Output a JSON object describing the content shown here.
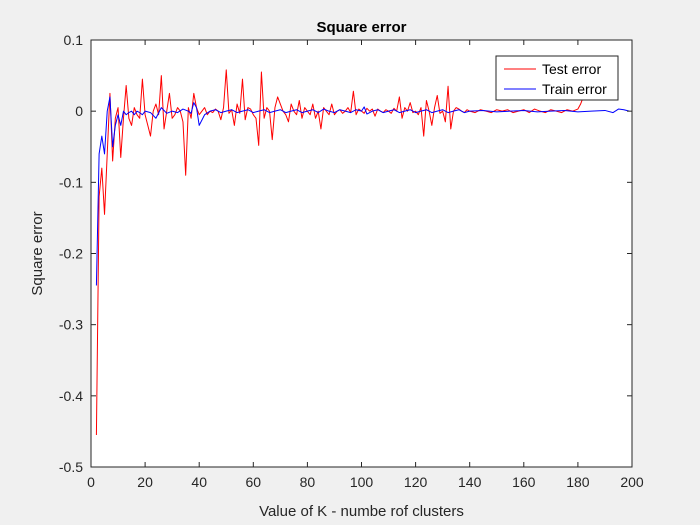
{
  "chart_data": {
    "type": "line",
    "title": "Square error",
    "xlabel": "Value of K - numbe rof clusters",
    "ylabel": "Square error",
    "xlim": [
      0,
      200
    ],
    "ylim": [
      -0.5,
      0.1
    ],
    "xticks": [
      0,
      20,
      40,
      60,
      80,
      100,
      120,
      140,
      160,
      180,
      200
    ],
    "yticks": [
      -0.5,
      -0.4,
      -0.3,
      -0.2,
      -0.1,
      0,
      0.1
    ],
    "ytick_labels": [
      "-0.5",
      "-0.4",
      "-0.3",
      "-0.2",
      "-0.1",
      "0",
      "0.1"
    ],
    "grid": false,
    "legend_position": "top-right",
    "series": [
      {
        "name": "Test error",
        "color": "#ff0000",
        "points": [
          [
            2,
            -0.455
          ],
          [
            3,
            -0.12
          ],
          [
            4,
            -0.08
          ],
          [
            5,
            -0.145
          ],
          [
            6,
            -0.06
          ],
          [
            7,
            0.025
          ],
          [
            8,
            -0.07
          ],
          [
            9,
            -0.01
          ],
          [
            10,
            0.005
          ],
          [
            11,
            -0.065
          ],
          [
            12,
            -0.01
          ],
          [
            13,
            0.036
          ],
          [
            14,
            -0.01
          ],
          [
            15,
            -0.02
          ],
          [
            16,
            0.005
          ],
          [
            17,
            -0.005
          ],
          [
            18,
            -0.01
          ],
          [
            19,
            0.045
          ],
          [
            20,
            -0.005
          ],
          [
            21,
            -0.02
          ],
          [
            22,
            -0.035
          ],
          [
            23,
            0.0
          ],
          [
            24,
            0.01
          ],
          [
            25,
            -0.005
          ],
          [
            26,
            0.05
          ],
          [
            27,
            -0.025
          ],
          [
            28,
            0.0
          ],
          [
            29,
            0.025
          ],
          [
            30,
            -0.01
          ],
          [
            31,
            -0.005
          ],
          [
            32,
            0.005
          ],
          [
            33,
            0.0
          ],
          [
            34,
            -0.015
          ],
          [
            35,
            -0.09
          ],
          [
            36,
            0.005
          ],
          [
            37,
            -0.01
          ],
          [
            38,
            0.025
          ],
          [
            39,
            0.005
          ],
          [
            40,
            -0.005
          ],
          [
            41,
            0.0
          ],
          [
            42,
            0.005
          ],
          [
            43,
            -0.005
          ],
          [
            44,
            0.0
          ],
          [
            45,
            -0.002
          ],
          [
            46,
            0.003
          ],
          [
            47,
            0.0
          ],
          [
            48,
            -0.012
          ],
          [
            49,
            0.005
          ],
          [
            50,
            0.058
          ],
          [
            51,
            -0.003
          ],
          [
            52,
            0.002
          ],
          [
            53,
            -0.02
          ],
          [
            54,
            0.01
          ],
          [
            55,
            -0.003
          ],
          [
            56,
            0.045
          ],
          [
            57,
            -0.012
          ],
          [
            58,
            0.005
          ],
          [
            59,
            0.003
          ],
          [
            60,
            -0.005
          ],
          [
            61,
            -0.01
          ],
          [
            62,
            -0.048
          ],
          [
            63,
            0.055
          ],
          [
            64,
            -0.01
          ],
          [
            65,
            0.005
          ],
          [
            66,
            0.0
          ],
          [
            67,
            -0.04
          ],
          [
            68,
            0.005
          ],
          [
            69,
            0.02
          ],
          [
            70,
            0.01
          ],
          [
            71,
            0.0
          ],
          [
            72,
            -0.005
          ],
          [
            73,
            -0.015
          ],
          [
            74,
            0.01
          ],
          [
            75,
            0.0
          ],
          [
            76,
            -0.005
          ],
          [
            77,
            0.015
          ],
          [
            78,
            -0.01
          ],
          [
            79,
            0.005
          ],
          [
            80,
            0.0
          ],
          [
            81,
            -0.005
          ],
          [
            82,
            0.01
          ],
          [
            83,
            -0.01
          ],
          [
            84,
            0.0
          ],
          [
            85,
            -0.025
          ],
          [
            86,
            0.005
          ],
          [
            87,
            0.0
          ],
          [
            88,
            -0.005
          ],
          [
            89,
            0.01
          ],
          [
            90,
            -0.005
          ],
          [
            91,
            0.0
          ],
          [
            92,
            0.002
          ],
          [
            93,
            -0.003
          ],
          [
            94,
            0.0
          ],
          [
            95,
            0.005
          ],
          [
            96,
            -0.002
          ],
          [
            97,
            0.028
          ],
          [
            98,
            -0.005
          ],
          [
            99,
            0.003
          ],
          [
            100,
            0.0
          ],
          [
            101,
            -0.003
          ],
          [
            102,
            0.004
          ],
          [
            103,
            0.0
          ],
          [
            104,
            0.003
          ],
          [
            105,
            -0.007
          ],
          [
            106,
            0.003
          ],
          [
            107,
            0.0
          ],
          [
            108,
            -0.002
          ],
          [
            109,
            0.002
          ],
          [
            110,
            0.0
          ],
          [
            111,
            -0.003
          ],
          [
            112,
            0.004
          ],
          [
            113,
            0.0
          ],
          [
            114,
            0.02
          ],
          [
            115,
            -0.01
          ],
          [
            116,
            0.005
          ],
          [
            117,
            0.0
          ],
          [
            118,
            0.012
          ],
          [
            119,
            -0.002
          ],
          [
            120,
            0.0
          ],
          [
            121,
            -0.005
          ],
          [
            122,
            0.005
          ],
          [
            123,
            -0.035
          ],
          [
            124,
            0.015
          ],
          [
            125,
            0.0
          ],
          [
            126,
            -0.02
          ],
          [
            127,
            0.005
          ],
          [
            128,
            0.022
          ],
          [
            129,
            -0.003
          ],
          [
            130,
            0.0
          ],
          [
            131,
            -0.015
          ],
          [
            132,
            0.035
          ],
          [
            133,
            -0.025
          ],
          [
            134,
            0.0
          ],
          [
            135,
            0.005
          ],
          [
            136,
            0.003
          ],
          [
            137,
            0.0
          ],
          [
            138,
            -0.002
          ],
          [
            139,
            0.002
          ],
          [
            140,
            0.0
          ],
          [
            142,
            -0.002
          ],
          [
            144,
            0.002
          ],
          [
            146,
            0.0
          ],
          [
            148,
            -0.002
          ],
          [
            150,
            0.002
          ],
          [
            152,
            0.0
          ],
          [
            154,
            0.002
          ],
          [
            156,
            -0.002
          ],
          [
            158,
            0.0
          ],
          [
            160,
            0.002
          ],
          [
            162,
            -0.002
          ],
          [
            164,
            0.003
          ],
          [
            166,
            0.0
          ],
          [
            168,
            -0.002
          ],
          [
            170,
            0.002
          ],
          [
            172,
            0.0
          ],
          [
            174,
            -0.002
          ],
          [
            176,
            0.002
          ],
          [
            178,
            0.0
          ],
          [
            180,
            0.003
          ],
          [
            181,
            0.01
          ],
          [
            182,
            0.02
          ]
        ]
      },
      {
        "name": "Train error",
        "color": "#0000ff",
        "points": [
          [
            2,
            -0.245
          ],
          [
            3,
            -0.06
          ],
          [
            4,
            -0.035
          ],
          [
            5,
            -0.06
          ],
          [
            6,
            0.0
          ],
          [
            7,
            0.02
          ],
          [
            8,
            -0.05
          ],
          [
            9,
            -0.02
          ],
          [
            10,
            -0.005
          ],
          [
            11,
            -0.02
          ],
          [
            12,
            0.0
          ],
          [
            13,
            -0.005
          ],
          [
            14,
            -0.002
          ],
          [
            15,
            0.0
          ],
          [
            16,
            -0.005
          ],
          [
            17,
            0.0
          ],
          [
            18,
            -0.002
          ],
          [
            19,
            -0.005
          ],
          [
            20,
            0.0
          ],
          [
            22,
            -0.002
          ],
          [
            24,
            -0.01
          ],
          [
            26,
            0.005
          ],
          [
            28,
            -0.003
          ],
          [
            30,
            0.0
          ],
          [
            32,
            -0.002
          ],
          [
            34,
            0.003
          ],
          [
            36,
            0.0
          ],
          [
            37,
            -0.003
          ],
          [
            38,
            0.012
          ],
          [
            39,
            0.005
          ],
          [
            40,
            -0.02
          ],
          [
            42,
            -0.005
          ],
          [
            44,
            0.0
          ],
          [
            46,
            0.002
          ],
          [
            48,
            -0.002
          ],
          [
            50,
            0.0
          ],
          [
            52,
            0.002
          ],
          [
            54,
            -0.002
          ],
          [
            56,
            0.0
          ],
          [
            58,
            0.002
          ],
          [
            60,
            -0.002
          ],
          [
            62,
            0.0
          ],
          [
            64,
            0.002
          ],
          [
            66,
            -0.002
          ],
          [
            68,
            0.0
          ],
          [
            70,
            0.002
          ],
          [
            72,
            -0.002
          ],
          [
            74,
            0.0
          ],
          [
            76,
            0.002
          ],
          [
            78,
            -0.002
          ],
          [
            80,
            0.0
          ],
          [
            82,
            0.002
          ],
          [
            84,
            -0.002
          ],
          [
            86,
            0.003
          ],
          [
            88,
            0.0
          ],
          [
            90,
            -0.002
          ],
          [
            92,
            0.002
          ],
          [
            94,
            0.0
          ],
          [
            96,
            -0.002
          ],
          [
            98,
            0.002
          ],
          [
            100,
            0.0
          ],
          [
            101,
            0.006
          ],
          [
            102,
            -0.004
          ],
          [
            104,
            0.0
          ],
          [
            106,
            0.002
          ],
          [
            108,
            -0.002
          ],
          [
            110,
            0.0
          ],
          [
            112,
            0.002
          ],
          [
            114,
            -0.002
          ],
          [
            116,
            0.0
          ],
          [
            118,
            0.002
          ],
          [
            120,
            -0.002
          ],
          [
            122,
            0.0
          ],
          [
            124,
            0.002
          ],
          [
            126,
            -0.002
          ],
          [
            128,
            0.0
          ],
          [
            130,
            0.002
          ],
          [
            132,
            -0.002
          ],
          [
            134,
            0.0
          ],
          [
            136,
            0.002
          ],
          [
            138,
            -0.002
          ],
          [
            140,
            0.0
          ],
          [
            145,
            0.001
          ],
          [
            150,
            -0.001
          ],
          [
            155,
            0.0
          ],
          [
            160,
            0.001
          ],
          [
            165,
            -0.001
          ],
          [
            170,
            0.0
          ],
          [
            175,
            0.001
          ],
          [
            180,
            -0.001
          ],
          [
            185,
            0.0
          ],
          [
            190,
            0.001
          ],
          [
            193,
            -0.002
          ],
          [
            195,
            0.003
          ],
          [
            197,
            0.002
          ],
          [
            199,
            0.0
          ]
        ]
      }
    ]
  }
}
